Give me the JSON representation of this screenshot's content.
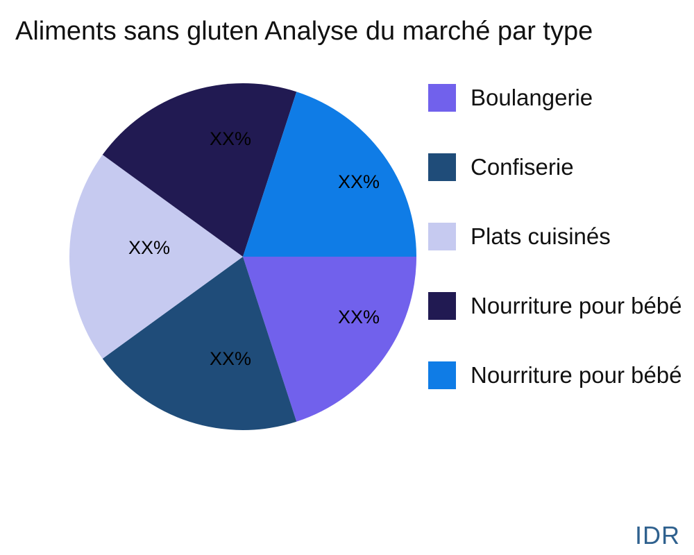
{
  "title": "Aliments sans gluten Analyse du marché par type",
  "watermark": "IDR",
  "chart_data": {
    "type": "pie",
    "title": "Aliments sans gluten Analyse du marché par type",
    "legend_position": "right",
    "start_angle_deg": 0,
    "direction": "clockwise",
    "slices": [
      {
        "label": "Boulangerie",
        "value": 20,
        "display_value": "XX%",
        "color": "#7161EC"
      },
      {
        "label": "Confiserie",
        "value": 20,
        "display_value": "XX%",
        "color": "#1F4C79"
      },
      {
        "label": "Plats cuisinés",
        "value": 20,
        "display_value": "XX%",
        "color": "#C6CAF0"
      },
      {
        "label": "Nourriture pour bébé",
        "value": 20,
        "display_value": "XX%",
        "color": "#211A52"
      },
      {
        "label": "Nourriture pour bébé",
        "value": 20,
        "display_value": "XX%",
        "color": "#0F7CE6"
      }
    ]
  }
}
